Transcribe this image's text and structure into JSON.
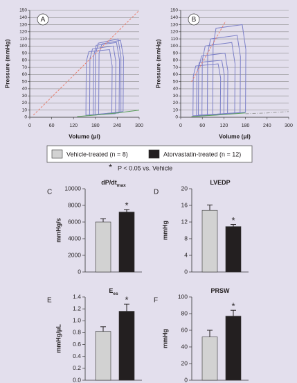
{
  "legend": {
    "items": [
      {
        "label": "Vehicle-treated (n = 8)",
        "color": "#d2d2d2"
      },
      {
        "label": "Atorvastatin-treated (n = 12)",
        "color": "#231f20"
      }
    ],
    "note_symbol": "*",
    "note_text": "P < 0.05 vs. Vehicle"
  },
  "chart_data": [
    {
      "type": "line",
      "panel": "A",
      "xlabel": "Volume (μl)",
      "ylabel": "Pressure (mmHg)",
      "xlim": [
        0,
        300
      ],
      "ylim": [
        0,
        150
      ],
      "xticks": [
        0,
        60,
        120,
        180,
        240,
        300
      ],
      "yticks": [
        0,
        10,
        20,
        30,
        40,
        50,
        60,
        70,
        80,
        90,
        100,
        110,
        120,
        130,
        140,
        150
      ],
      "grid": true,
      "series": [
        {
          "color": "#7c80c8",
          "style": "solid",
          "x": [
            235,
            236,
            229,
            172,
            165,
            164,
            235
          ],
          "values": [
            5,
            78,
            100,
            96,
            82,
            3,
            5
          ]
        },
        {
          "color": "#7c80c8",
          "style": "solid",
          "x": [
            245,
            246,
            238,
            182,
            175,
            174,
            245
          ],
          "values": [
            6,
            80,
            105,
            101,
            85,
            3,
            6
          ]
        },
        {
          "color": "#7c80c8",
          "style": "solid",
          "x": [
            250,
            250,
            242,
            188,
            180,
            179,
            250
          ],
          "values": [
            7,
            85,
            110,
            104,
            88,
            4,
            7
          ]
        },
        {
          "color": "#7c80c8",
          "style": "solid",
          "x": [
            225,
            226,
            219,
            162,
            155,
            154,
            225
          ],
          "values": [
            5,
            72,
            95,
            92,
            78,
            3,
            5
          ]
        },
        {
          "color": "#7c80c8",
          "style": "solid",
          "x": [
            256,
            257,
            249,
            198,
            190,
            189,
            256
          ],
          "values": [
            8,
            84,
            108,
            103,
            90,
            4,
            8
          ]
        },
        {
          "color": "#e8806e",
          "style": "dashed",
          "x": [
            10,
            300
          ],
          "values": [
            3,
            150
          ]
        },
        {
          "color": "#5aa05a",
          "style": "solid",
          "x": [
            130,
            180,
            240,
            300
          ],
          "values": [
            1,
            3,
            6,
            10
          ]
        }
      ]
    },
    {
      "type": "line",
      "panel": "B",
      "xlabel": "Volume (μl)",
      "ylabel": "Pressure (mmHg)",
      "xlim": [
        0,
        300
      ],
      "ylim": [
        0,
        150
      ],
      "xticks": [
        0,
        60,
        120,
        180,
        240,
        300
      ],
      "yticks": [
        0,
        10,
        20,
        30,
        40,
        50,
        60,
        70,
        80,
        90,
        100,
        110,
        120,
        130,
        140,
        150
      ],
      "grid": true,
      "series": [
        {
          "color": "#7c80c8",
          "style": "solid",
          "x": [
            110,
            111,
            104,
            42,
            35,
            34,
            110
          ],
          "values": [
            4,
            55,
            75,
            72,
            58,
            2,
            4
          ]
        },
        {
          "color": "#7c80c8",
          "style": "solid",
          "x": [
            120,
            121,
            114,
            52,
            45,
            44,
            120
          ],
          "values": [
            4,
            60,
            80,
            77,
            62,
            2,
            4
          ]
        },
        {
          "color": "#7c80c8",
          "style": "solid",
          "x": [
            130,
            131,
            123,
            58,
            50,
            49,
            130
          ],
          "values": [
            5,
            65,
            90,
            86,
            70,
            3,
            5
          ]
        },
        {
          "color": "#7c80c8",
          "style": "solid",
          "x": [
            150,
            151,
            142,
            68,
            60,
            59,
            150
          ],
          "values": [
            6,
            75,
            105,
            100,
            80,
            3,
            6
          ]
        },
        {
          "color": "#7c80c8",
          "style": "solid",
          "x": [
            165,
            166,
            157,
            83,
            75,
            74,
            165
          ],
          "values": [
            6,
            85,
            115,
            110,
            90,
            3,
            6
          ]
        },
        {
          "color": "#7c80c8",
          "style": "solid",
          "x": [
            180,
            181,
            171,
            98,
            90,
            89,
            180
          ],
          "values": [
            7,
            95,
            130,
            125,
            100,
            4,
            7
          ]
        },
        {
          "color": "#e8806e",
          "style": "dashed",
          "x": [
            30,
            125
          ],
          "values": [
            50,
            135
          ]
        },
        {
          "color": "#5aa05a",
          "style": "solid",
          "x": [
            30,
            100,
            180
          ],
          "values": [
            1,
            3,
            6
          ]
        },
        {
          "color": "#999999",
          "style": "dashdot",
          "x": [
            180,
            240,
            300
          ],
          "values": [
            5,
            6,
            8
          ]
        }
      ]
    },
    {
      "type": "bar",
      "panel": "C",
      "title": "dP/dt",
      "title_sub": "max",
      "ylabel": "mmHg/s",
      "ylim": [
        0,
        10000
      ],
      "yticks": [
        0,
        2000,
        4000,
        6000,
        8000,
        10000
      ],
      "values": [
        6000,
        7200
      ],
      "errors": [
        400,
        300
      ],
      "colors": [
        "#d2d2d2",
        "#231f20"
      ],
      "annotation": "*"
    },
    {
      "type": "bar",
      "panel": "D",
      "title": "LVEDP",
      "ylabel": "mmHg",
      "ylim": [
        0,
        20
      ],
      "yticks": [
        0,
        4,
        8,
        12,
        16,
        20
      ],
      "values": [
        14.8,
        10.9
      ],
      "errors": [
        1.3,
        0.5
      ],
      "colors": [
        "#d2d2d2",
        "#231f20"
      ],
      "annotation": "*"
    },
    {
      "type": "bar",
      "panel": "E",
      "title": "E",
      "title_sub": "es",
      "ylabel": "mmHg/μL",
      "ylim": [
        0,
        1.4
      ],
      "yticks": [
        {
          "value": 0,
          "label": "0.0"
        },
        0.2,
        0.4,
        0.6,
        0.8,
        {
          "value": 1,
          "label": "1.0"
        },
        1.2,
        1.4
      ],
      "values": [
        0.82,
        1.16
      ],
      "errors": [
        0.08,
        0.12
      ],
      "colors": [
        "#d2d2d2",
        "#231f20"
      ],
      "annotation": "*"
    },
    {
      "type": "bar",
      "panel": "F",
      "title": "PRSW",
      "ylabel": "mmHg",
      "ylim": [
        0,
        100
      ],
      "yticks": [
        0,
        20,
        40,
        60,
        80,
        100
      ],
      "values": [
        52,
        77
      ],
      "errors": [
        8,
        7
      ],
      "colors": [
        "#d2d2d2",
        "#231f20"
      ],
      "annotation": "*"
    }
  ]
}
